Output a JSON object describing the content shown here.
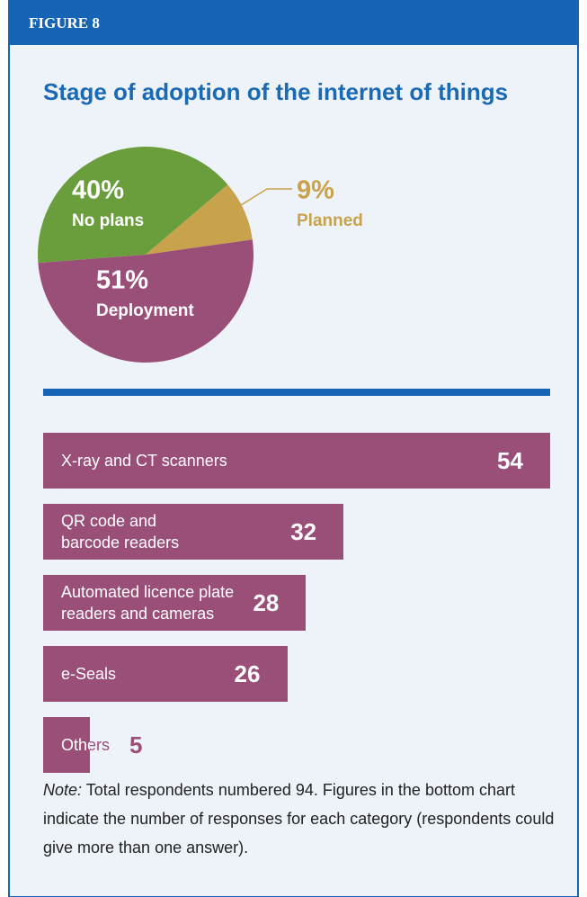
{
  "figure_label": "FIGURE 8",
  "chart_data": [
    {
      "type": "pie",
      "title": "Stage of adoption of the internet of things",
      "categories": [
        "No plans",
        "Planned",
        "Deployment"
      ],
      "values": [
        40,
        9,
        51
      ],
      "value_labels": [
        "40%",
        "9%",
        "51%"
      ],
      "colors": [
        "#6a9e3c",
        "#c9a24c",
        "#9a4f79"
      ]
    },
    {
      "type": "bar",
      "orientation": "horizontal",
      "categories": [
        "X-ray and CT scanners",
        "QR code and\nbarcode readers",
        "Automated licence plate\nreaders and cameras",
        "e-Seals",
        "Others"
      ],
      "values": [
        54,
        32,
        28,
        26,
        5
      ],
      "xlim": [
        0,
        54
      ],
      "color": "#9a4f79"
    }
  ],
  "note": {
    "label": "Note:",
    "text": "Total respondents numbered 94. Figures in the bottom chart indicate the number of responses for each category (respondents could give more than one answer)."
  }
}
